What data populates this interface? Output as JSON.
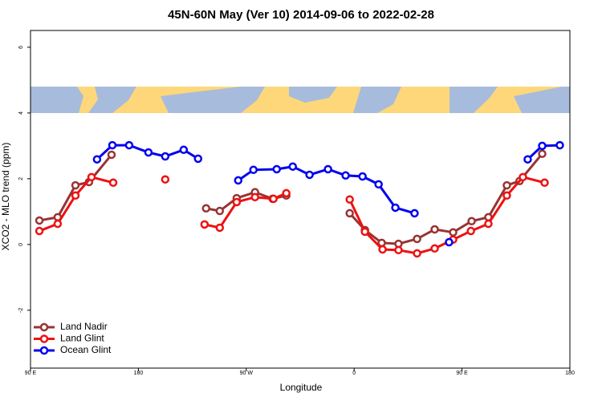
{
  "chart_data": {
    "type": "line",
    "title": "45N-60N May (Ver 10)   2014-09-06 to 2022-02-28",
    "xlabel": "Longitude",
    "ylabel": "XCO2 - MLO trend (ppm)",
    "xlim": [
      90,
      540
    ],
    "ylim": [
      -3.76,
      6.51
    ],
    "xticks": [
      {
        "value": 90,
        "label": "90 E"
      },
      180,
      {
        "value": 270,
        "label": "90 W"
      },
      {
        "value": 360,
        "label": "0"
      },
      {
        "value": 450,
        "label": "90 E"
      },
      {
        "value": 540,
        "label": "180"
      }
    ],
    "yticks": [
      -2,
      0,
      2,
      4,
      6
    ],
    "legend": "lower left",
    "series": [
      {
        "name": "Land Nadir",
        "color": "#993333",
        "x": [
          97.4,
          112.7,
          127.5,
          138.8,
          157.6,
          null,
          236.5,
          247.9,
          262,
          277.3,
          292,
          303.4,
          null,
          356.3,
          369,
          383,
          397,
          412.5,
          427.2,
          442.6,
          458,
          472,
          487.4,
          498,
          516.9
        ],
        "values": [
          0.73,
          0.83,
          1.8,
          1.9,
          2.73,
          null,
          1.1,
          1.02,
          1.41,
          1.59,
          1.39,
          1.49,
          null,
          0.95,
          0.44,
          0.05,
          0.02,
          0.17,
          0.46,
          0.37,
          0.71,
          0.83,
          1.8,
          1.93,
          2.76
        ]
      },
      {
        "name": "Land Glint",
        "color": "#ee1111",
        "x": [
          97.4,
          112.7,
          127.5,
          140.9,
          159,
          null,
          202.4,
          null,
          235.2,
          247.9,
          262,
          277.3,
          292.7,
          303.4,
          null,
          356.3,
          369,
          383.7,
          397,
          412.5,
          427.2,
          442.6,
          457.4,
          472,
          487.4,
          500.8,
          518.9
        ],
        "values": [
          0.41,
          0.63,
          1.49,
          2.05,
          1.88,
          null,
          1.98,
          null,
          0.61,
          0.51,
          1.29,
          1.44,
          1.39,
          1.56,
          null,
          1.37,
          0.39,
          -0.15,
          -0.17,
          -0.27,
          -0.12,
          0.15,
          0.41,
          0.63,
          1.49,
          2.05,
          1.88
        ]
      },
      {
        "name": "Ocean Glint",
        "color": "#0000ee",
        "x": [
          145.5,
          158.3,
          172.3,
          188.4,
          202.4,
          217.8,
          229.8,
          null,
          263.3,
          276,
          295.4,
          308.8,
          322.8,
          338.2,
          352.9,
          367,
          380.4,
          394.4,
          410.4,
          null,
          439.2,
          null,
          504.8,
          516.9,
          531.6
        ],
        "values": [
          2.59,
          3.02,
          3.02,
          2.8,
          2.68,
          2.88,
          2.61,
          null,
          1.95,
          2.27,
          2.29,
          2.37,
          2.12,
          2.29,
          2.1,
          2.07,
          1.83,
          1.12,
          0.95,
          null,
          0.07,
          null,
          2.59,
          3.0,
          3.02
        ]
      }
    ]
  }
}
